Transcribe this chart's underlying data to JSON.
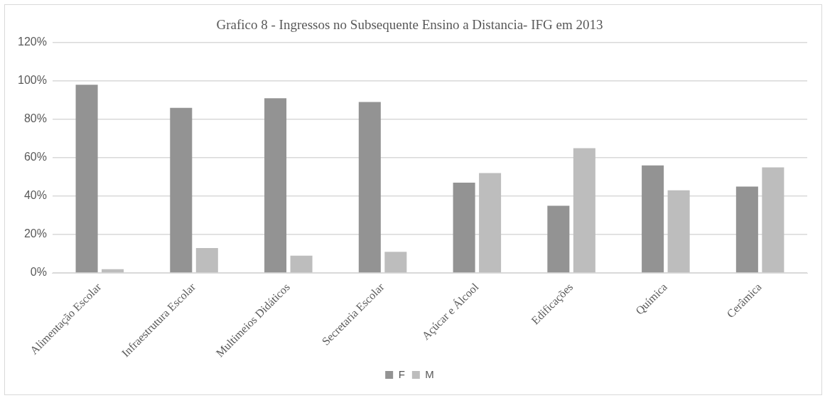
{
  "chart_data": {
    "type": "bar",
    "title": "Grafico 8 - Ingressos no Subsequente Ensino a Distancia- IFG em 2013",
    "categories": [
      "Alimentação Escolar",
      "Infraestrutura Escolar",
      "Multimeios Didáticos",
      "Secretaria Escolar",
      "Açúcar e Álcool",
      "Edificações",
      "Química",
      "Cerâmica"
    ],
    "series": [
      {
        "name": "F",
        "color": "#939393",
        "values": [
          98,
          86,
          91,
          89,
          47,
          35,
          56,
          45
        ]
      },
      {
        "name": "M",
        "color": "#bdbdbd",
        "values": [
          2,
          13,
          9,
          11,
          52,
          65,
          43,
          55
        ]
      }
    ],
    "ylim": [
      0,
      120
    ],
    "yticks": [
      {
        "value": 0,
        "label": "0%"
      },
      {
        "value": 20,
        "label": "20%"
      },
      {
        "value": 40,
        "label": "40%"
      },
      {
        "value": 60,
        "label": "60%"
      },
      {
        "value": 80,
        "label": "80%"
      },
      {
        "value": 100,
        "label": "100%"
      },
      {
        "value": 120,
        "label": "120%"
      }
    ],
    "grid": "y",
    "legend": "bottom"
  }
}
